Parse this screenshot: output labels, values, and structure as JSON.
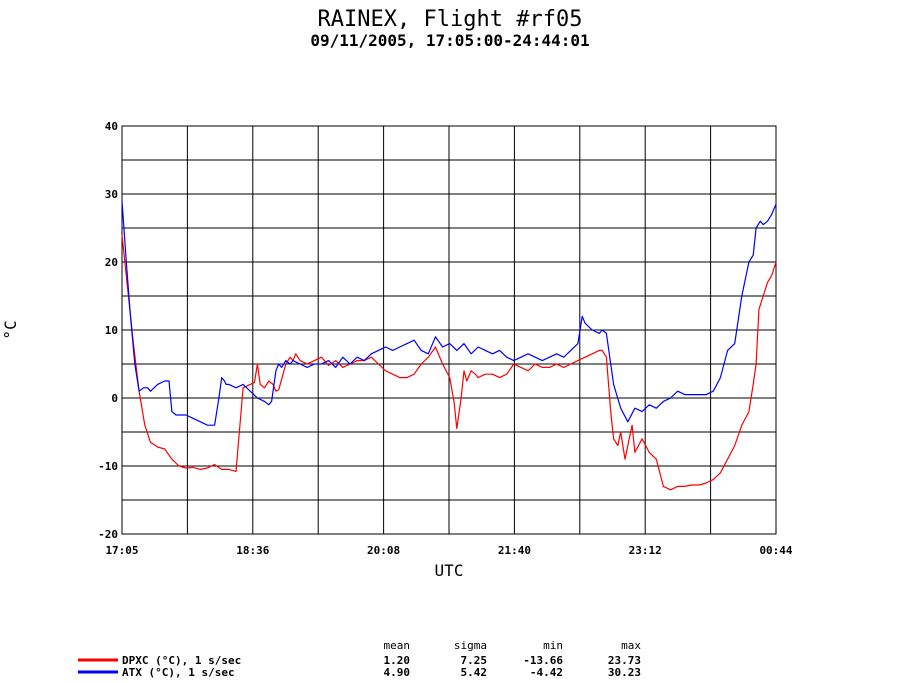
{
  "chart_data": {
    "type": "line",
    "title": "RAINEX, Flight #rf05",
    "subtitle": "09/11/2005, 17:05:00-24:44:01",
    "xlabel": "UTC",
    "ylabel": "°C",
    "ylim": [
      -20,
      40
    ],
    "yticks": [
      -20,
      -10,
      0,
      10,
      20,
      30,
      40
    ],
    "xtick_labels": [
      "17:05",
      "18:36",
      "20:08",
      "21:40",
      "23:12",
      "00:44"
    ],
    "xlim_minutes": [
      0,
      459
    ],
    "grid": true,
    "series": [
      {
        "name": "DPXC (°C), 1 s/sec",
        "color": "#ff0000",
        "x": [
          0,
          4,
          8,
          12,
          16,
          20,
          25,
          30,
          35,
          40,
          45,
          50,
          55,
          60,
          65,
          70,
          75,
          80,
          85,
          90,
          93,
          95,
          97,
          100,
          103,
          106,
          108,
          110,
          115,
          118,
          120,
          122,
          125,
          130,
          135,
          140,
          145,
          150,
          155,
          160,
          165,
          170,
          175,
          180,
          185,
          190,
          195,
          200,
          205,
          210,
          215,
          220,
          225,
          230,
          233,
          235,
          238,
          240,
          242,
          245,
          248,
          250,
          255,
          260,
          265,
          270,
          275,
          280,
          285,
          290,
          295,
          300,
          305,
          310,
          315,
          320,
          325,
          330,
          335,
          337,
          340,
          343,
          345,
          348,
          350,
          353,
          355,
          358,
          360,
          365,
          370,
          375,
          380,
          385,
          390,
          395,
          400,
          405,
          410,
          415,
          420,
          425,
          430,
          435,
          440,
          443,
          445,
          447,
          450,
          453,
          456,
          459
        ],
        "y": [
          24,
          16,
          8,
          1,
          -4,
          -6.5,
          -7.2,
          -7.5,
          -9,
          -10,
          -10.3,
          -10.2,
          -10.5,
          -10.3,
          -9.8,
          -10.5,
          -10.5,
          -10.8,
          1.5,
          2,
          2.3,
          5,
          2,
          1.5,
          2.5,
          2,
          1,
          1.2,
          5,
          6,
          5.5,
          6.5,
          5.5,
          5,
          5.5,
          6,
          4.8,
          5.5,
          4.5,
          5,
          5.5,
          5.5,
          6,
          5,
          4,
          3.5,
          3,
          3,
          3.5,
          5,
          6,
          7.5,
          5,
          3,
          -0.5,
          -4.5,
          0,
          4,
          2.5,
          4,
          3.5,
          3,
          3.5,
          3.5,
          3,
          3.5,
          5,
          4.5,
          4,
          5,
          4.5,
          4.5,
          5,
          4.5,
          5,
          5.5,
          6,
          6.5,
          7,
          7,
          6,
          -2,
          -6,
          -7,
          -5,
          -9,
          -7,
          -4,
          -8,
          -6,
          -8,
          -9,
          -13,
          -13.5,
          -13,
          -13,
          -12.8,
          -12.8,
          -12.5,
          -12,
          -11,
          -9,
          -7,
          -4,
          -2,
          2,
          5,
          13,
          15,
          17,
          18,
          20
        ]
      },
      {
        "name": "ATX (°C), 1 s/sec",
        "color": "#0000ff",
        "x": [
          0,
          3,
          6,
          9,
          12,
          15,
          18,
          20,
          25,
          30,
          33,
          35,
          38,
          40,
          45,
          50,
          55,
          60,
          65,
          68,
          70,
          72,
          73,
          75,
          80,
          85,
          90,
          95,
          100,
          103,
          105,
          108,
          110,
          112,
          115,
          118,
          120,
          125,
          130,
          135,
          140,
          145,
          150,
          155,
          160,
          165,
          170,
          175,
          180,
          185,
          190,
          195,
          200,
          205,
          210,
          215,
          220,
          225,
          230,
          235,
          240,
          245,
          250,
          255,
          260,
          265,
          270,
          275,
          280,
          285,
          290,
          295,
          300,
          305,
          310,
          315,
          320,
          323,
          325,
          330,
          335,
          337,
          340,
          345,
          350,
          355,
          360,
          365,
          370,
          375,
          380,
          385,
          390,
          395,
          400,
          405,
          410,
          415,
          420,
          425,
          430,
          435,
          440,
          443,
          445,
          448,
          450,
          453,
          456,
          459
        ],
        "y": [
          29,
          20,
          12,
          5,
          1,
          1.5,
          1.5,
          1,
          2,
          2.5,
          2.5,
          -2,
          -2.5,
          -2.5,
          -2.5,
          -3,
          -3.5,
          -4,
          -4,
          0,
          3,
          2.5,
          2,
          2,
          1.5,
          2,
          1,
          0,
          -0.5,
          -1,
          -0.5,
          4,
          5,
          4.5,
          5.5,
          5,
          5.5,
          5,
          4.5,
          5,
          5,
          5.5,
          4.5,
          6,
          5,
          6,
          5.5,
          6.5,
          7,
          7.5,
          7,
          7.5,
          8,
          8.5,
          7,
          6.5,
          9,
          7.5,
          8,
          7,
          8,
          6.5,
          7.5,
          7,
          6.5,
          7,
          6,
          5.5,
          6,
          6.5,
          6,
          5.5,
          6,
          6.5,
          6,
          7,
          8,
          12,
          11,
          10,
          9.5,
          10,
          9.5,
          2,
          -1.5,
          -3.5,
          -1.5,
          -2,
          -1,
          -1.5,
          -0.5,
          0,
          1,
          0.5,
          0.5,
          0.5,
          0.5,
          1,
          3,
          7,
          8,
          15,
          20,
          21,
          25,
          26,
          25.5,
          26,
          27,
          28.5
        ]
      }
    ],
    "stats": {
      "headers": [
        "mean",
        "sigma",
        "min",
        "max"
      ],
      "rows": [
        {
          "label": "DPXC (°C), 1 s/sec",
          "color": "#ff0000",
          "values": [
            "1.20",
            "7.25",
            "-13.66",
            "23.73"
          ]
        },
        {
          "label": "ATX (°C), 1 s/sec",
          "color": "#0000ff",
          "values": [
            "4.90",
            "5.42",
            "-4.42",
            "30.23"
          ]
        }
      ]
    }
  }
}
